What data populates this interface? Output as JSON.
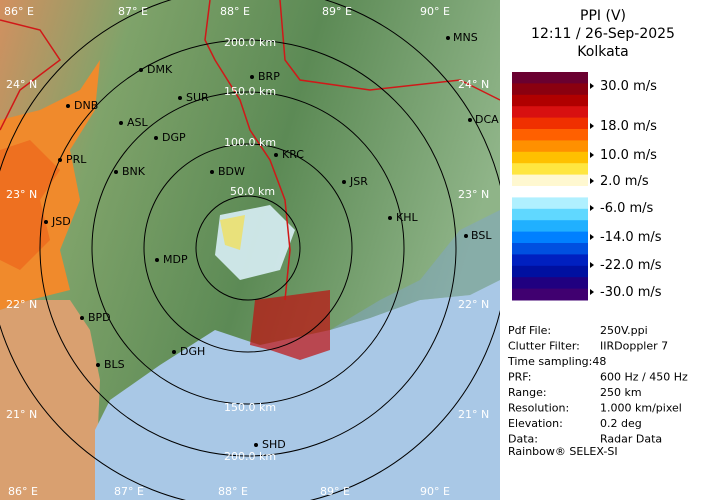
{
  "title": "PPI (V)",
  "time": "12:11 / 26-Sep-2025",
  "site": "Kolkata",
  "scale": {
    "labels": [
      "30.0 m/s",
      "18.0 m/s",
      "10.0 m/s",
      "2.0 m/s",
      "-6.0 m/s",
      "-14.0 m/s",
      "-22.0 m/s",
      "-30.0 m/s"
    ],
    "colors": [
      "#6a0030",
      "#8a0010",
      "#b00000",
      "#d81010",
      "#f03000",
      "#ff6000",
      "#ff9000",
      "#ffc000",
      "#ffe640",
      "#fff8d0",
      "#ffffff",
      "#b0f0ff",
      "#60d8ff",
      "#20b0ff",
      "#0080ff",
      "#0050e0",
      "#0020c0",
      "#0010a0",
      "#200080",
      "#400070"
    ]
  },
  "rings": [
    "50.0 km",
    "100.0 km",
    "150.0 km",
    "200.0 km"
  ],
  "lon": [
    "86° E",
    "87° E",
    "88° E",
    "89° E",
    "90° E"
  ],
  "lat": [
    "24° N",
    "23° N",
    "22° N",
    "21° N"
  ],
  "cities": [
    "DMK",
    "BRP",
    "SUR",
    "DNB",
    "ASL",
    "DGP",
    "DCA",
    "MNS",
    "KRC",
    "PRL",
    "BNK",
    "BDW",
    "JSR",
    "KHL",
    "JSD",
    "BSL",
    "MDP",
    "BPD",
    "DGH",
    "BLS",
    "SHD"
  ],
  "info": [
    [
      "Pdf File:",
      "250V.ppi"
    ],
    [
      "Clutter Filter:",
      "IIRDoppler 7"
    ],
    [
      "Time sampling:48",
      ""
    ],
    [
      "PRF:",
      "600 Hz / 450 Hz"
    ],
    [
      "Range:",
      "250 km"
    ],
    [
      "Resolution:",
      "1.000 km/pixel"
    ],
    [
      "Elevation:",
      "0.2 deg"
    ],
    [
      "Data:",
      "Radar Data"
    ]
  ],
  "footer": "Rainbow® SELEX-SI"
}
